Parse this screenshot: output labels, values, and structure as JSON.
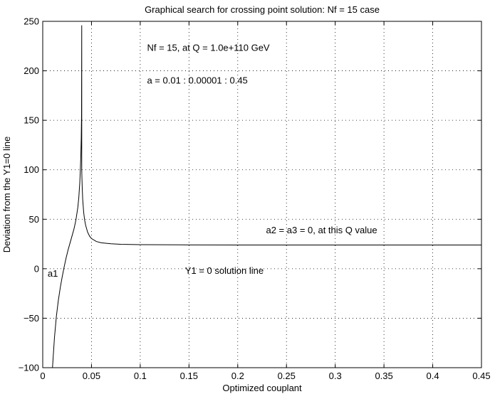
{
  "chart_data": {
    "type": "line",
    "title": "Graphical search for crossing point solution: Nf = 15 case",
    "xlabel": "Optimized couplant",
    "ylabel": "Deviation from the Y1=0 line",
    "xlim": [
      0,
      0.45
    ],
    "ylim": [
      -100,
      250
    ],
    "grid": true,
    "x_ticks": [
      0,
      0.05,
      0.1,
      0.15,
      0.2,
      0.25,
      0.3,
      0.35,
      0.4,
      0.45
    ],
    "x_tick_labels": [
      "0",
      "0.05",
      "0.1",
      "0.15",
      "0.2",
      "0.25",
      "0.3",
      "0.35",
      "0.4",
      "0.45"
    ],
    "y_ticks": [
      -100,
      -50,
      0,
      50,
      100,
      150,
      200,
      250
    ],
    "y_tick_labels": [
      "−100",
      "−50",
      "0",
      "50",
      "100",
      "150",
      "200",
      "250"
    ],
    "series": [
      {
        "x": [
          0.01,
          0.012,
          0.014,
          0.016,
          0.018,
          0.02,
          0.022,
          0.024,
          0.026,
          0.028,
          0.03,
          0.032,
          0.034,
          0.036,
          0.037,
          0.038,
          0.0385,
          0.039,
          0.0395,
          0.0398,
          0.04,
          0.04,
          0.04,
          0.0402,
          0.0405,
          0.041,
          0.042,
          0.043,
          0.044,
          0.046,
          0.048,
          0.05,
          0.055,
          0.06,
          0.07,
          0.08,
          0.1,
          0.15,
          0.2,
          0.3,
          0.45
        ],
        "y": [
          -100,
          -70,
          -48,
          -32,
          -19,
          -8,
          2,
          11,
          19,
          26,
          33,
          40,
          49,
          62,
          72,
          87,
          98,
          112,
          132,
          155,
          246,
          120,
          100,
          92,
          82,
          70,
          57,
          49,
          44,
          37,
          33,
          30.5,
          27.5,
          26.2,
          25.2,
          24.7,
          24.3,
          24.1,
          24.0,
          24.0,
          24.0
        ]
      }
    ],
    "annotations": [
      {
        "text": "Nf = 15, at Q = 1.0e+110 GeV",
        "x": 0.107,
        "y": 220
      },
      {
        "text": "a = 0.01 : 0.00001 : 0.45",
        "x": 0.107,
        "y": 187
      },
      {
        "text": "a2 = a3 = 0, at this Q value",
        "x": 0.229,
        "y": 36
      },
      {
        "text": "Y1 = 0 solution line",
        "x": 0.146,
        "y": -5
      },
      {
        "text": "a1",
        "x": 0.005,
        "y": -8
      }
    ]
  }
}
